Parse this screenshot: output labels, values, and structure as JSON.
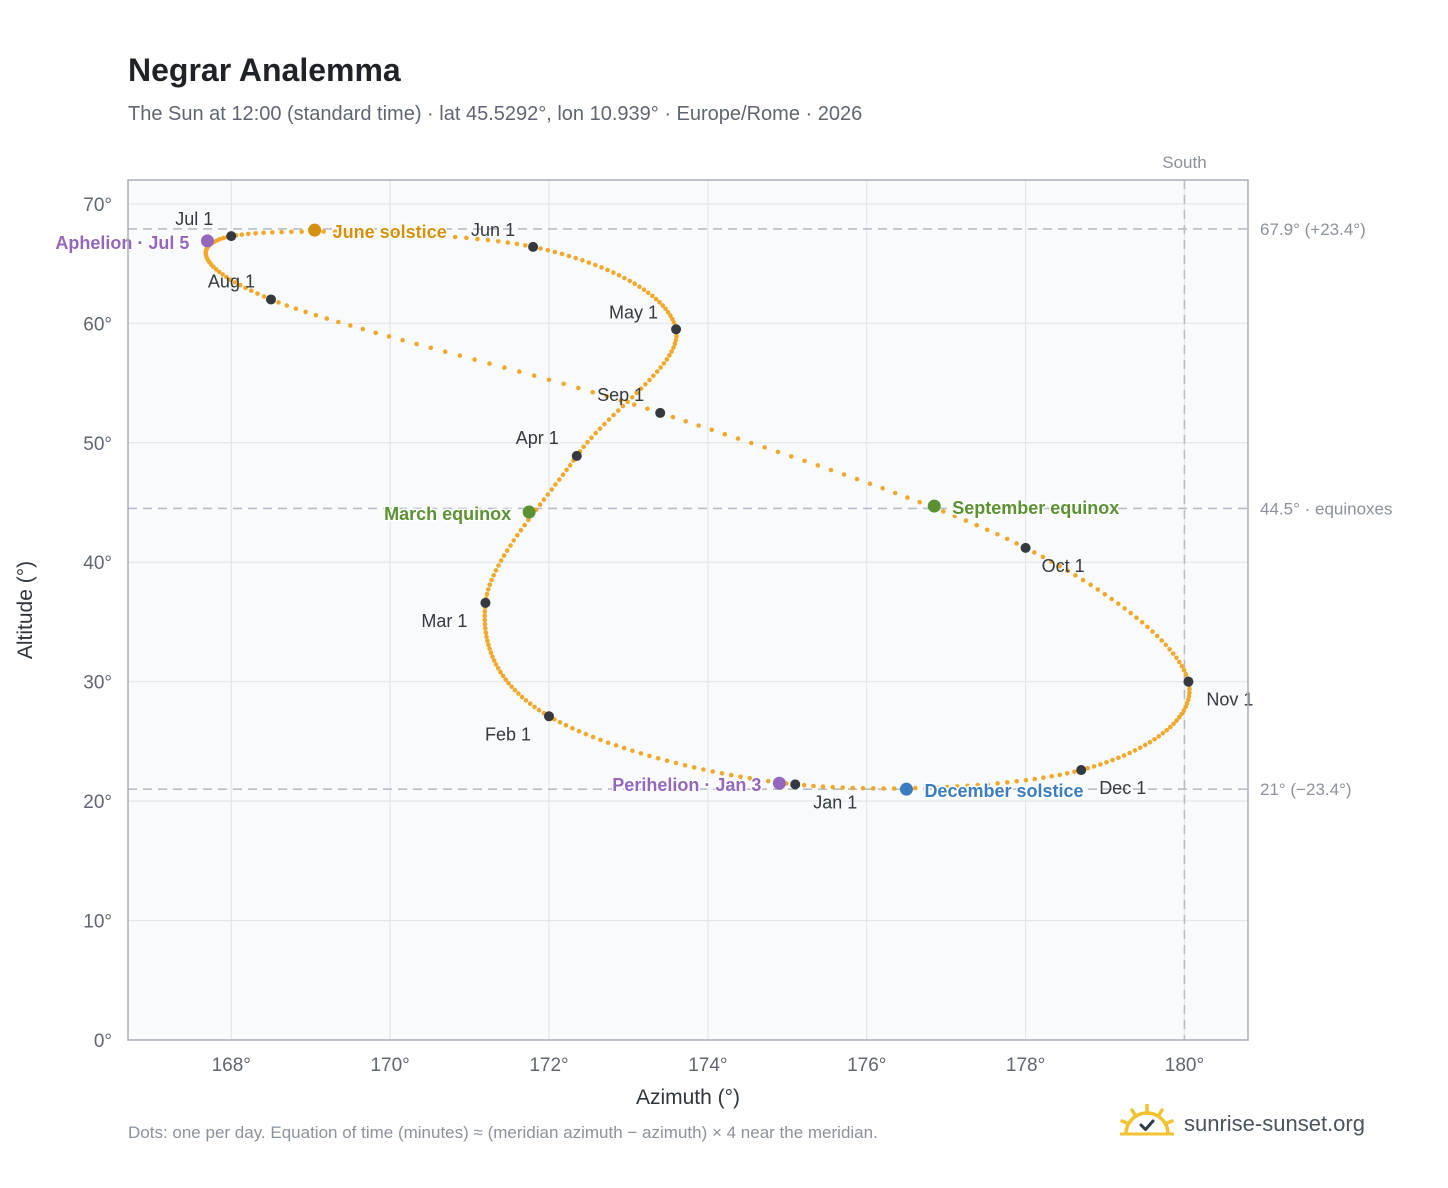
{
  "title": "Negrar Analemma",
  "subtitle": "The Sun at 12:00 (standard time) · lat 45.5292°, lon 10.939° · Europe/Rome · 2026",
  "footnote": "Dots: one per day. Equation of time (minutes) ≈ (meridian azimuth − azimuth) × 4 near the meridian.",
  "brand": {
    "name": "sunrise-sunset.org",
    "icon": "sun-icon"
  },
  "colors": {
    "curve": "#f2a82a",
    "month_marker": "#343a40",
    "june_solstice": "#d4900e",
    "december_solstice": "#3a7dc1",
    "equinox": "#5a9232",
    "apsis": "#9467bd",
    "plot_bg": "#f8fafc",
    "grid": "#e3e7ec",
    "reference_line": "#b8bec6"
  },
  "chart_data": {
    "type": "scatter",
    "xlabel": "Azimuth (°)",
    "ylabel": "Altitude (°)",
    "xlim": [
      166.7,
      180.8
    ],
    "ylim": [
      0,
      72
    ],
    "xticks": [
      168,
      170,
      172,
      174,
      176,
      178,
      180
    ],
    "xtick_labels": [
      "168°",
      "170°",
      "172°",
      "174°",
      "176°",
      "178°",
      "180°"
    ],
    "yticks": [
      0,
      10,
      20,
      30,
      40,
      50,
      60,
      70
    ],
    "ytick_labels": [
      "0°",
      "10°",
      "20°",
      "30°",
      "40°",
      "50°",
      "60°",
      "70°"
    ],
    "grid": true,
    "south_line": {
      "x": 180,
      "label": "South"
    },
    "reference_lines": [
      {
        "y": 67.9,
        "label": "67.9° (+23.4°)"
      },
      {
        "y": 44.5,
        "label": "44.5° · equinoxes"
      },
      {
        "y": 21.0,
        "label": "21° (−23.4°)"
      }
    ],
    "month_points": [
      {
        "label": "Jan 1",
        "x": 175.1,
        "y": 21.4
      },
      {
        "label": "Feb 1",
        "x": 172.0,
        "y": 27.1
      },
      {
        "label": "Mar 1",
        "x": 171.2,
        "y": 36.6
      },
      {
        "label": "Apr 1",
        "x": 172.35,
        "y": 48.9
      },
      {
        "label": "May 1",
        "x": 173.6,
        "y": 59.5
      },
      {
        "label": "Jun 1",
        "x": 171.8,
        "y": 66.4
      },
      {
        "label": "Jul 1",
        "x": 168.0,
        "y": 67.3
      },
      {
        "label": "Aug 1",
        "x": 168.5,
        "y": 62.0
      },
      {
        "label": "Sep 1",
        "x": 173.4,
        "y": 52.5
      },
      {
        "label": "Oct 1",
        "x": 178.0,
        "y": 41.2
      },
      {
        "label": "Nov 1",
        "x": 180.05,
        "y": 30.0
      },
      {
        "label": "Dec 1",
        "x": 178.7,
        "y": 22.6
      }
    ],
    "events": [
      {
        "label": "June solstice",
        "x": 169.05,
        "y": 67.8,
        "kind": "june_solstice"
      },
      {
        "label": "December solstice",
        "x": 176.5,
        "y": 21.0,
        "kind": "december_solstice"
      },
      {
        "label": "March equinox",
        "x": 171.75,
        "y": 44.2,
        "kind": "equinox"
      },
      {
        "label": "September equinox",
        "x": 176.85,
        "y": 44.7,
        "kind": "equinox"
      },
      {
        "label": "Aphelion · Jul 5",
        "x": 167.7,
        "y": 66.9,
        "kind": "apsis"
      },
      {
        "label": "Perihelion · Jan 3",
        "x": 174.9,
        "y": 21.5,
        "kind": "apsis"
      }
    ]
  }
}
